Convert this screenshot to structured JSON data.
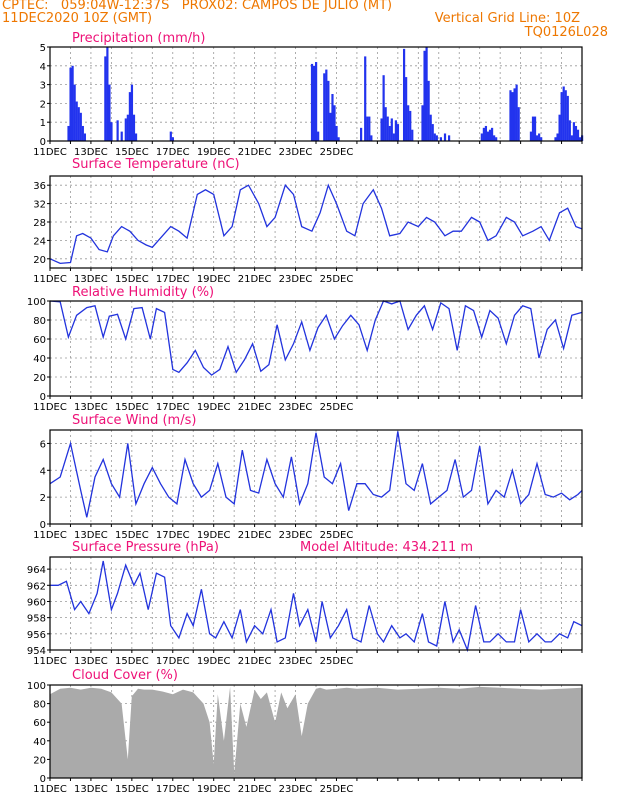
{
  "header": {
    "line1_left": "CPTEC:   059:04W-12:37S   PROX02: CAMPOS DE JULIO (MT)",
    "line2_left": "11DEC2020 10Z (GMT)",
    "line2_right": "Vertical Grid Line: 10Z",
    "line3_right": "TQ0126L028"
  },
  "colors": {
    "header": "#ee7700",
    "title": "#ee1177",
    "line": "#2233dd",
    "bar": "#2233ee",
    "cloud": "#aaaaaa",
    "grid": "#999999"
  },
  "chart_data": [
    {
      "type": "bar",
      "title": "Precipitation (mm/h)",
      "xlabels": [
        "11DEC",
        "13DEC",
        "15DEC",
        "17DEC",
        "19DEC",
        "21DEC",
        "23DEC",
        "25DEC"
      ],
      "ylim": [
        0,
        5
      ],
      "yticks": [
        "0",
        "1",
        "2",
        "3",
        "4",
        "5"
      ],
      "x": [
        0.9,
        1.0,
        1.1,
        1.2,
        1.3,
        1.4,
        1.5,
        1.6,
        1.7,
        2.7,
        2.8,
        2.9,
        3.0,
        3.3,
        3.5,
        3.7,
        3.8,
        3.9,
        4.0,
        4.1,
        4.2,
        5.9,
        6.0,
        12.8,
        12.9,
        13.0,
        13.1,
        13.4,
        13.5,
        13.6,
        13.7,
        13.8,
        13.9,
        14.0,
        14.1,
        15.2,
        15.4,
        15.5,
        15.6,
        15.7,
        16.2,
        16.3,
        16.4,
        16.5,
        16.6,
        16.7,
        16.8,
        16.9,
        17.0,
        17.3,
        17.4,
        17.5,
        17.6,
        17.7,
        18.2,
        18.3,
        18.4,
        18.5,
        18.6,
        18.7,
        18.8,
        18.9,
        19.1,
        19.3,
        19.5,
        21.1,
        21.2,
        21.3,
        21.4,
        21.5,
        21.6,
        21.7,
        21.8,
        22.5,
        22.6,
        22.7,
        22.8,
        22.9,
        23.5,
        23.6,
        23.7,
        23.8,
        23.9,
        24.0,
        24.7,
        24.8,
        24.9,
        25.0,
        25.1,
        25.2,
        25.3,
        25.4,
        25.5,
        25.6,
        25.7,
        25.8,
        25.9,
        26.0
      ],
      "values": [
        0.8,
        3.9,
        4.0,
        3.0,
        2.1,
        1.8,
        1.5,
        0.8,
        0.4,
        4.5,
        5.0,
        3.0,
        1.0,
        1.1,
        0.5,
        1.2,
        1.4,
        2.6,
        3.0,
        1.4,
        0.4,
        0.5,
        0.2,
        4.1,
        4.0,
        4.2,
        0.5,
        3.6,
        3.8,
        3.2,
        1.5,
        2.5,
        1.9,
        0.8,
        0.2,
        0.7,
        4.5,
        1.3,
        1.3,
        0.3,
        1.2,
        3.5,
        1.8,
        1.3,
        0.8,
        1.2,
        0.4,
        1.1,
        0.9,
        4.9,
        3.4,
        1.9,
        1.6,
        0.6,
        1.9,
        4.8,
        5.0,
        3.2,
        1.4,
        0.9,
        0.4,
        0.3,
        0.2,
        0.4,
        0.3,
        0.4,
        0.7,
        0.8,
        0.5,
        0.6,
        0.7,
        0.3,
        0.2,
        2.7,
        2.6,
        2.8,
        3.0,
        1.8,
        0.5,
        1.3,
        1.3,
        0.3,
        0.4,
        0.2,
        0.2,
        0.4,
        1.4,
        2.6,
        2.9,
        2.7,
        2.4,
        1.1,
        0.3,
        1.0,
        0.8,
        0.6,
        0.2,
        0.3
      ]
    },
    {
      "type": "line",
      "title": "Surface Temperature (nC)",
      "xlabels": [
        "11DEC",
        "13DEC",
        "15DEC",
        "17DEC",
        "19DEC",
        "21DEC",
        "23DEC",
        "25DEC"
      ],
      "ylim": [
        18,
        38
      ],
      "yticks": [
        "20",
        "24",
        "28",
        "32",
        "36"
      ],
      "x": [
        0,
        0.5,
        1,
        1.3,
        1.6,
        2,
        2.4,
        2.8,
        3.1,
        3.5,
        3.9,
        4.3,
        4.7,
        5,
        5.5,
        5.9,
        6.3,
        6.7,
        7.2,
        7.6,
        8,
        8.5,
        8.9,
        9.3,
        9.7,
        10.2,
        10.6,
        11,
        11.5,
        11.9,
        12.3,
        12.8,
        13.2,
        13.6,
        14,
        14.5,
        14.9,
        15.3,
        15.8,
        16.2,
        16.6,
        17.1,
        17.5,
        18,
        18.4,
        18.8,
        19.3,
        19.7,
        20.1,
        20.6,
        21,
        21.4,
        21.8,
        22.3,
        22.7,
        23.1,
        23.6,
        24,
        24.4,
        24.9,
        25.3,
        25.7,
        26
      ],
      "values": [
        20,
        19,
        19.2,
        25,
        25.5,
        24.5,
        22,
        21.5,
        25,
        27,
        26,
        24,
        23,
        22.5,
        25,
        27,
        26,
        24.5,
        34,
        35,
        34,
        25,
        27,
        35,
        36,
        32,
        27,
        29,
        36,
        34,
        27,
        26,
        30,
        36,
        32,
        26,
        25,
        32,
        35,
        31,
        25,
        25.5,
        28,
        27,
        29,
        28,
        25,
        26,
        26,
        29,
        28,
        24,
        25,
        29,
        28,
        25,
        26,
        27,
        24,
        30,
        31,
        27,
        26.5
      ]
    },
    {
      "type": "line",
      "title": "Relative Humidity (%)",
      "xlabels": [
        "11DEC",
        "13DEC",
        "15DEC",
        "17DEC",
        "19DEC",
        "21DEC",
        "23DEC",
        "25DEC"
      ],
      "ylim": [
        0,
        100
      ],
      "yticks": [
        "0",
        "20",
        "40",
        "60",
        "80",
        "100"
      ],
      "x": [
        0,
        0.5,
        0.9,
        1.3,
        1.8,
        2.2,
        2.6,
        2.9,
        3.3,
        3.7,
        4.1,
        4.5,
        4.9,
        5.2,
        5.6,
        6,
        6.3,
        6.7,
        7.1,
        7.5,
        7.9,
        8.3,
        8.7,
        9.1,
        9.5,
        9.9,
        10.3,
        10.7,
        11.1,
        11.5,
        11.9,
        12.3,
        12.7,
        13.1,
        13.5,
        13.9,
        14.3,
        14.7,
        15.1,
        15.5,
        15.9,
        16.3,
        16.7,
        17.1,
        17.5,
        17.9,
        18.3,
        18.7,
        19.1,
        19.5,
        19.9,
        20.3,
        20.7,
        21.1,
        21.5,
        21.9,
        22.3,
        22.7,
        23.1,
        23.5,
        23.9,
        24.3,
        24.7,
        25.1,
        25.5,
        26
      ],
      "values": [
        100,
        99,
        62,
        85,
        93,
        95,
        62,
        84,
        86,
        60,
        92,
        93,
        60,
        92,
        88,
        28,
        25,
        35,
        48,
        30,
        22,
        28,
        52,
        25,
        38,
        55,
        26,
        33,
        75,
        38,
        55,
        78,
        48,
        72,
        85,
        60,
        74,
        85,
        75,
        48,
        80,
        100,
        97,
        100,
        70,
        85,
        95,
        70,
        98,
        92,
        48,
        95,
        90,
        62,
        90,
        82,
        55,
        85,
        95,
        92,
        40,
        70,
        80,
        50,
        85,
        88
      ]
    },
    {
      "type": "line",
      "title": "Surface Wind (m/s)",
      "xlabels": [
        "11DEC",
        "13DEC",
        "15DEC",
        "17DEC",
        "19DEC",
        "21DEC",
        "23DEC",
        "25DEC"
      ],
      "ylim": [
        0,
        7
      ],
      "yticks": [
        "0",
        "2",
        "4",
        "6"
      ],
      "x": [
        0,
        0.5,
        1,
        1.5,
        1.8,
        2.2,
        2.6,
        3,
        3.4,
        3.8,
        4.2,
        4.6,
        5,
        5.4,
        5.8,
        6.2,
        6.6,
        7,
        7.4,
        7.8,
        8.2,
        8.6,
        9,
        9.4,
        9.8,
        10.2,
        10.6,
        11,
        11.4,
        11.8,
        12.2,
        12.6,
        13,
        13.4,
        13.8,
        14.2,
        14.6,
        15,
        15.4,
        15.8,
        16.2,
        16.6,
        17,
        17.4,
        17.8,
        18.2,
        18.6,
        19,
        19.4,
        19.8,
        20.2,
        20.6,
        21,
        21.4,
        21.8,
        22.2,
        22.6,
        23,
        23.4,
        23.8,
        24.2,
        24.6,
        25,
        25.4,
        25.8,
        26
      ],
      "values": [
        3,
        3.5,
        6,
        2.5,
        0.5,
        3.5,
        4.8,
        3,
        2,
        6,
        1.5,
        3,
        4.2,
        3,
        2,
        1.5,
        4.8,
        3,
        2,
        2.5,
        4.5,
        2,
        1.5,
        5.5,
        2.5,
        2.3,
        4.8,
        3,
        2,
        5,
        1.5,
        3,
        6.8,
        3.5,
        3,
        4.5,
        1,
        3,
        3,
        2.2,
        2,
        2.5,
        6.9,
        3,
        2.5,
        4.5,
        1.5,
        2,
        2.5,
        4.8,
        2,
        2.5,
        5.8,
        1.5,
        2.5,
        2,
        4,
        1.5,
        2.2,
        4.5,
        2.2,
        2,
        2.3,
        1.8,
        2.2,
        2.5
      ]
    },
    {
      "type": "line",
      "title": "Surface Pressure (hPa)",
      "annotation": "Model Altitude: 434.211  m",
      "xlabels": [
        "11DEC",
        "13DEC",
        "15DEC",
        "17DEC",
        "19DEC",
        "21DEC",
        "23DEC",
        "25DEC"
      ],
      "ylim": [
        954,
        965.5
      ],
      "yticks": [
        "954",
        "956",
        "958",
        "960",
        "962",
        "964"
      ],
      "x": [
        0,
        0.4,
        0.8,
        1.2,
        1.5,
        1.9,
        2.3,
        2.6,
        3,
        3.3,
        3.7,
        4.1,
        4.4,
        4.8,
        5.2,
        5.6,
        5.9,
        6.3,
        6.7,
        7,
        7.4,
        7.8,
        8.1,
        8.5,
        8.9,
        9.3,
        9.6,
        10,
        10.4,
        10.8,
        11.1,
        11.5,
        11.9,
        12.2,
        12.6,
        13,
        13.3,
        13.7,
        14.1,
        14.5,
        14.8,
        15.2,
        15.6,
        16,
        16.3,
        16.7,
        17.1,
        17.4,
        17.8,
        18.2,
        18.5,
        18.9,
        19.3,
        19.7,
        20,
        20.4,
        20.8,
        21.2,
        21.5,
        21.9,
        22.3,
        22.7,
        23,
        23.4,
        23.8,
        24.2,
        24.5,
        24.9,
        25.3,
        25.6,
        26
      ],
      "values": [
        962,
        962,
        962.5,
        959,
        960,
        958.5,
        961,
        965,
        959,
        961,
        964.5,
        962,
        963.5,
        959,
        963.5,
        963,
        957,
        955.5,
        958.5,
        957,
        961.5,
        956,
        955.5,
        957.5,
        955.5,
        959,
        955,
        957,
        956,
        959,
        955,
        955.5,
        961,
        957,
        959,
        955,
        960,
        955.5,
        957,
        959,
        955.5,
        955,
        959.5,
        956,
        955,
        957,
        955.5,
        956,
        955,
        958.5,
        955,
        954.5,
        960,
        955,
        956.5,
        954,
        959.5,
        955,
        955,
        956,
        955,
        955,
        959,
        955,
        956,
        955,
        955,
        956,
        955.5,
        957.5,
        957
      ]
    },
    {
      "type": "area",
      "title": "Cloud Cover (%)",
      "xlabels": [
        "11DEC",
        "13DEC",
        "15DEC",
        "17DEC",
        "19DEC",
        "21DEC",
        "23DEC",
        "25DEC"
      ],
      "ylim": [
        0,
        100
      ],
      "yticks": [
        "0",
        "20",
        "40",
        "60",
        "80",
        "100"
      ],
      "x": [
        0,
        0.5,
        1,
        1.5,
        2,
        2.5,
        3,
        3.5,
        3.8,
        4,
        4.3,
        4.6,
        5,
        5.5,
        6,
        6.5,
        7,
        7.5,
        7.8,
        8,
        8.2,
        8.5,
        8.8,
        9,
        9.3,
        9.6,
        10,
        10.3,
        10.6,
        11,
        11.3,
        11.6,
        12,
        12.3,
        12.6,
        13,
        13.2,
        13.5,
        14,
        14.5,
        15,
        16,
        17,
        18,
        19,
        20,
        21,
        22,
        23,
        24,
        25,
        26
      ],
      "values": [
        90,
        96,
        97,
        95,
        97,
        96,
        92,
        80,
        20,
        88,
        96,
        95,
        95,
        93,
        90,
        95,
        92,
        80,
        60,
        15,
        90,
        40,
        98,
        5,
        80,
        55,
        95,
        85,
        92,
        60,
        92,
        75,
        90,
        45,
        80,
        96,
        97,
        95,
        96,
        97,
        96,
        97,
        95,
        96,
        97,
        96,
        98,
        97,
        96,
        95,
        96,
        97
      ]
    }
  ]
}
